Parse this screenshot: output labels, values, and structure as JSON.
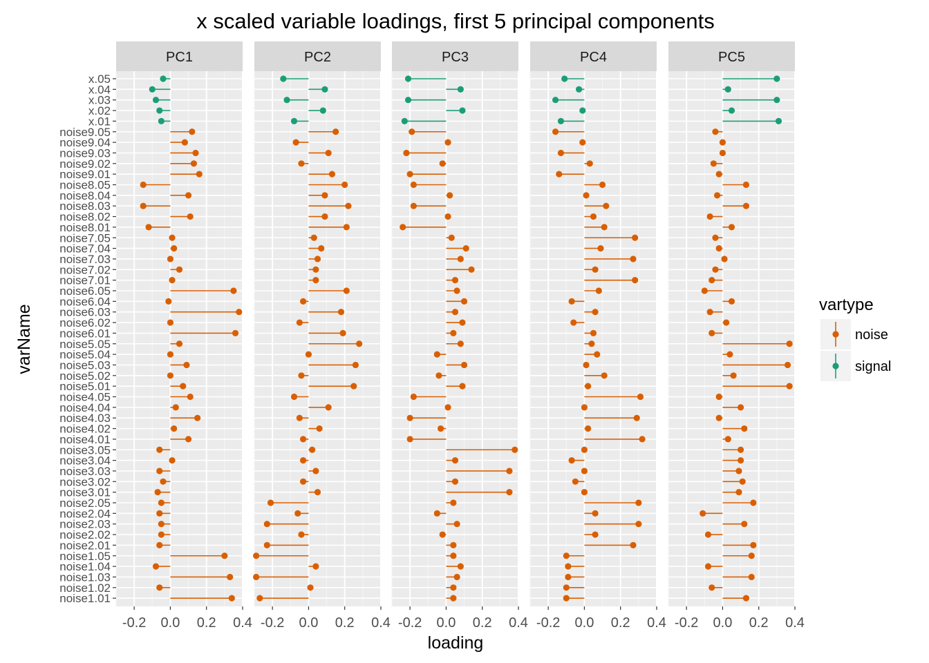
{
  "chart_data": {
    "type": "scatter",
    "title": "x scaled variable loadings, first 5 principal components",
    "xlabel": "loading",
    "ylabel": "varName",
    "xlim": [
      -0.3,
      0.4
    ],
    "x_ticks": [
      "-0.2",
      "0.0",
      "0.2",
      "0.4"
    ],
    "x_tick_values": [
      -0.2,
      0.0,
      0.2,
      0.4
    ],
    "grid": true,
    "legend": {
      "title": "vartype",
      "placement": "right",
      "entries": [
        {
          "name": "noise",
          "color": "#D95F02"
        },
        {
          "name": "signal",
          "color": "#1B9E77"
        }
      ]
    },
    "panels": [
      "PC1",
      "PC2",
      "PC3",
      "PC4",
      "PC5"
    ],
    "variables": [
      "x.05",
      "x.04",
      "x.03",
      "x.02",
      "x.01",
      "noise9.05",
      "noise9.04",
      "noise9.03",
      "noise9.02",
      "noise9.01",
      "noise8.05",
      "noise8.04",
      "noise8.03",
      "noise8.02",
      "noise8.01",
      "noise7.05",
      "noise7.04",
      "noise7.03",
      "noise7.02",
      "noise7.01",
      "noise6.05",
      "noise6.04",
      "noise6.03",
      "noise6.02",
      "noise6.01",
      "noise5.05",
      "noise5.04",
      "noise5.03",
      "noise5.02",
      "noise5.01",
      "noise4.05",
      "noise4.04",
      "noise4.03",
      "noise4.02",
      "noise4.01",
      "noise3.05",
      "noise3.04",
      "noise3.03",
      "noise3.02",
      "noise3.01",
      "noise2.05",
      "noise2.04",
      "noise2.03",
      "noise2.02",
      "noise2.01",
      "noise1.05",
      "noise1.04",
      "noise1.03",
      "noise1.02",
      "noise1.01"
    ],
    "vartype": [
      "signal",
      "signal",
      "signal",
      "signal",
      "signal",
      "noise",
      "noise",
      "noise",
      "noise",
      "noise",
      "noise",
      "noise",
      "noise",
      "noise",
      "noise",
      "noise",
      "noise",
      "noise",
      "noise",
      "noise",
      "noise",
      "noise",
      "noise",
      "noise",
      "noise",
      "noise",
      "noise",
      "noise",
      "noise",
      "noise",
      "noise",
      "noise",
      "noise",
      "noise",
      "noise",
      "noise",
      "noise",
      "noise",
      "noise",
      "noise",
      "noise",
      "noise",
      "noise",
      "noise",
      "noise",
      "noise",
      "noise",
      "noise",
      "noise",
      "noise"
    ],
    "loadings": {
      "PC1": [
        -0.04,
        -0.1,
        -0.08,
        -0.06,
        -0.05,
        0.12,
        0.08,
        0.14,
        0.13,
        0.16,
        -0.15,
        0.1,
        -0.15,
        0.11,
        -0.12,
        0.01,
        0.02,
        0.0,
        0.05,
        0.01,
        0.35,
        -0.01,
        0.38,
        0.0,
        0.36,
        0.05,
        0.0,
        0.09,
        0.0,
        0.07,
        0.11,
        0.03,
        0.15,
        0.02,
        0.1,
        -0.06,
        0.01,
        -0.06,
        -0.04,
        -0.07,
        -0.05,
        -0.06,
        -0.05,
        -0.05,
        -0.06,
        0.3,
        -0.08,
        0.33,
        -0.06,
        0.34
      ],
      "PC2": [
        -0.14,
        0.09,
        -0.12,
        0.08,
        -0.08,
        0.15,
        -0.07,
        0.11,
        -0.04,
        0.13,
        0.2,
        0.09,
        0.22,
        0.09,
        0.21,
        0.03,
        0.07,
        0.05,
        0.04,
        0.04,
        0.21,
        -0.03,
        0.18,
        -0.05,
        0.19,
        0.28,
        0.0,
        0.26,
        -0.04,
        0.25,
        -0.08,
        0.11,
        -0.05,
        0.06,
        -0.03,
        0.02,
        -0.03,
        0.04,
        -0.03,
        0.05,
        -0.21,
        -0.06,
        -0.23,
        -0.04,
        -0.23,
        -0.29,
        0.04,
        -0.29,
        0.01,
        -0.27
      ],
      "PC3": [
        -0.21,
        0.08,
        -0.21,
        0.09,
        -0.23,
        -0.19,
        0.01,
        -0.22,
        -0.02,
        -0.2,
        -0.18,
        0.02,
        -0.18,
        0.01,
        -0.24,
        0.03,
        0.11,
        0.08,
        0.14,
        0.05,
        0.06,
        0.1,
        0.05,
        0.09,
        0.04,
        0.08,
        -0.05,
        0.1,
        -0.04,
        0.09,
        -0.18,
        0.01,
        -0.2,
        -0.03,
        -0.2,
        0.38,
        0.05,
        0.35,
        0.05,
        0.35,
        0.04,
        -0.05,
        0.06,
        -0.02,
        0.04,
        0.04,
        0.08,
        0.06,
        0.04,
        0.04
      ],
      "PC4": [
        -0.11,
        -0.03,
        -0.16,
        -0.01,
        -0.13,
        -0.16,
        -0.01,
        -0.13,
        0.03,
        -0.14,
        0.1,
        0.01,
        0.12,
        0.05,
        0.11,
        0.28,
        0.09,
        0.27,
        0.06,
        0.28,
        0.08,
        -0.07,
        0.06,
        -0.06,
        0.05,
        0.04,
        0.07,
        0.01,
        0.11,
        0.02,
        0.31,
        0.0,
        0.29,
        0.02,
        0.32,
        0.0,
        -0.07,
        0.0,
        -0.05,
        0.0,
        0.3,
        0.06,
        0.3,
        0.06,
        0.27,
        -0.1,
        -0.09,
        -0.09,
        -0.1,
        -0.1
      ],
      "PC5": [
        0.3,
        0.03,
        0.3,
        0.05,
        0.31,
        -0.04,
        0.0,
        0.0,
        -0.05,
        -0.02,
        0.13,
        -0.03,
        0.13,
        -0.07,
        0.05,
        -0.04,
        -0.02,
        0.01,
        -0.04,
        -0.06,
        -0.1,
        0.05,
        -0.07,
        0.02,
        -0.06,
        0.37,
        0.04,
        0.36,
        0.06,
        0.37,
        -0.02,
        0.1,
        -0.02,
        0.12,
        0.03,
        0.1,
        0.1,
        0.09,
        0.11,
        0.09,
        0.17,
        -0.11,
        0.12,
        -0.08,
        0.17,
        0.16,
        -0.08,
        0.16,
        -0.06,
        0.13
      ]
    }
  }
}
